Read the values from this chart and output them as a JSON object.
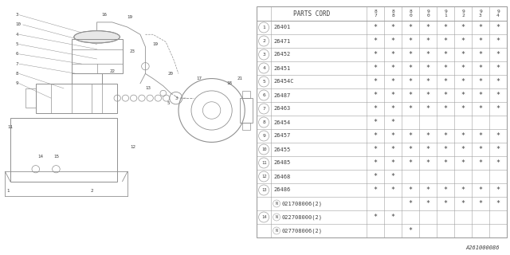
{
  "title": "A261000086",
  "table_header": "PARTS CORD",
  "year_cols": [
    "8\n7",
    "8\n8",
    "8\n0",
    "9\n0",
    "9\n1",
    "9\n2",
    "9\n3",
    "9\n4"
  ],
  "parts": [
    {
      "num": "1",
      "code": "26401",
      "stars": [
        1,
        1,
        1,
        1,
        1,
        1,
        1,
        1
      ],
      "circle_num": true,
      "circle_N": false
    },
    {
      "num": "2",
      "code": "26471",
      "stars": [
        1,
        1,
        1,
        1,
        1,
        1,
        1,
        1
      ],
      "circle_num": true,
      "circle_N": false
    },
    {
      "num": "3",
      "code": "26452",
      "stars": [
        1,
        1,
        1,
        1,
        1,
        1,
        1,
        1
      ],
      "circle_num": true,
      "circle_N": false
    },
    {
      "num": "4",
      "code": "26451",
      "stars": [
        1,
        1,
        1,
        1,
        1,
        1,
        1,
        1
      ],
      "circle_num": true,
      "circle_N": false
    },
    {
      "num": "5",
      "code": "26454C",
      "stars": [
        1,
        1,
        1,
        1,
        1,
        1,
        1,
        1
      ],
      "circle_num": true,
      "circle_N": false
    },
    {
      "num": "6",
      "code": "26487",
      "stars": [
        1,
        1,
        1,
        1,
        1,
        1,
        1,
        1
      ],
      "circle_num": true,
      "circle_N": false
    },
    {
      "num": "7",
      "code": "26463",
      "stars": [
        1,
        1,
        1,
        1,
        1,
        1,
        1,
        1
      ],
      "circle_num": true,
      "circle_N": false
    },
    {
      "num": "8",
      "code": "26454",
      "stars": [
        1,
        1,
        0,
        0,
        0,
        0,
        0,
        0
      ],
      "circle_num": true,
      "circle_N": false
    },
    {
      "num": "9",
      "code": "26457",
      "stars": [
        1,
        1,
        1,
        1,
        1,
        1,
        1,
        1
      ],
      "circle_num": true,
      "circle_N": false
    },
    {
      "num": "10",
      "code": "26455",
      "stars": [
        1,
        1,
        1,
        1,
        1,
        1,
        1,
        1
      ],
      "circle_num": true,
      "circle_N": false
    },
    {
      "num": "11",
      "code": "26485",
      "stars": [
        1,
        1,
        1,
        1,
        1,
        1,
        1,
        1
      ],
      "circle_num": true,
      "circle_N": false
    },
    {
      "num": "12",
      "code": "26468",
      "stars": [
        1,
        1,
        0,
        0,
        0,
        0,
        0,
        0
      ],
      "circle_num": true,
      "circle_N": false
    },
    {
      "num": "13",
      "code": "26486",
      "stars": [
        1,
        1,
        1,
        1,
        1,
        1,
        1,
        1
      ],
      "circle_num": true,
      "circle_N": false
    },
    {
      "num": "",
      "code": "021708006(2)",
      "stars": [
        0,
        0,
        1,
        1,
        1,
        1,
        1,
        1
      ],
      "circle_num": false,
      "circle_N": true
    },
    {
      "num": "14",
      "code": "022708000(2)",
      "stars": [
        1,
        1,
        0,
        0,
        0,
        0,
        0,
        0
      ],
      "circle_num": true,
      "circle_N": true
    },
    {
      "num": "",
      "code": "027708006(2)",
      "stars": [
        0,
        0,
        1,
        0,
        0,
        0,
        0,
        0
      ],
      "circle_num": false,
      "circle_N": true
    }
  ],
  "bg_color": "#ffffff",
  "line_color": "#a0a0a0",
  "text_color": "#404040",
  "draw_line_color": "#909090"
}
